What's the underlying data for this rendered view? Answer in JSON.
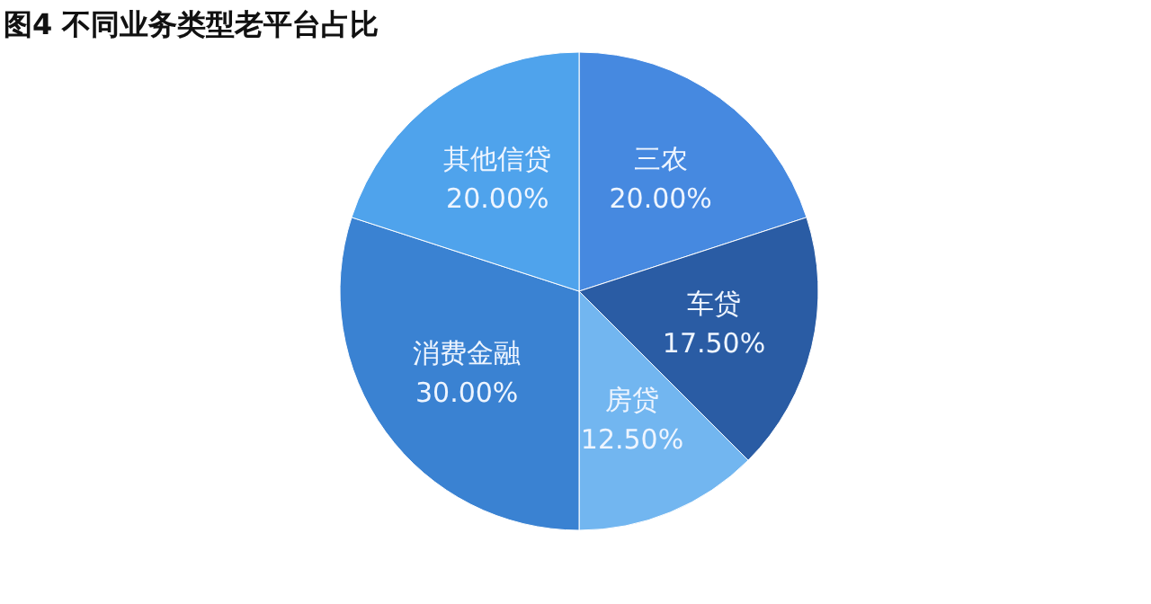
{
  "chart_data": {
    "type": "pie",
    "title": "图4 不同业务类型老平台占比",
    "categories": [
      "三农",
      "车贷",
      "房贷",
      "消费金融",
      "其他信贷"
    ],
    "values": [
      20,
      17.5,
      12.5,
      30,
      20
    ],
    "value_labels": [
      "20.00%",
      "17.50%",
      "12.50%",
      "30.00%",
      "20.00%"
    ],
    "colors": [
      "#4689e0",
      "#2a5ca4",
      "#72b6f0",
      "#3a82d2",
      "#4fa3ec"
    ],
    "legend": false
  }
}
